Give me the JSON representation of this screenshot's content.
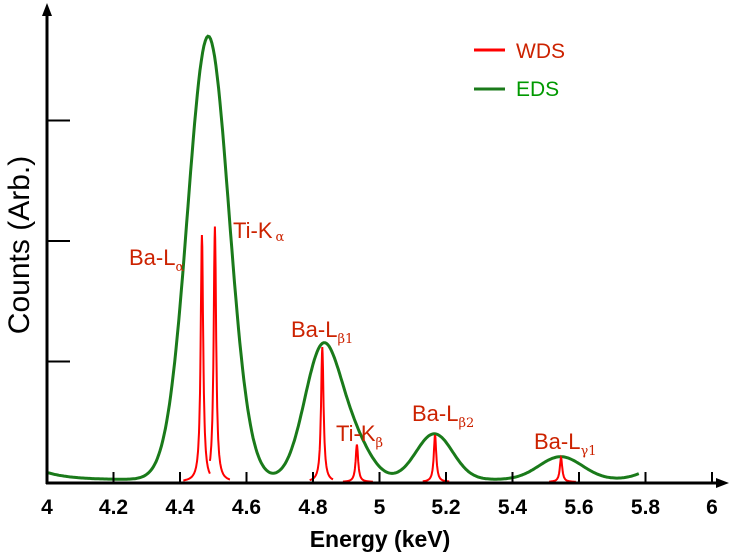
{
  "chart_data": {
    "type": "line",
    "title": "",
    "xlabel": "Energy (keV)",
    "ylabel": "Counts (Arb.)",
    "xlim": [
      4,
      6
    ],
    "ylim": [
      0,
      3.95
    ],
    "x_ticks": [
      "4",
      "4.2",
      "4.4",
      "4.6",
      "4.8",
      "5",
      "5.2",
      "5.4",
      "5.6",
      "5.8",
      "6"
    ],
    "y_ticks": [
      1,
      2,
      3
    ],
    "grid": false,
    "legend": {
      "placement": "top-right",
      "entries": [
        {
          "name": "WDS",
          "color": "#ff0000",
          "text_color": "#cc2200"
        },
        {
          "name": "EDS",
          "color": "#1a7a1a",
          "text_color": "#009900"
        }
      ]
    },
    "series": [
      {
        "name": "EDS",
        "color": "#1a7a1a",
        "x_range": [
          4.0,
          5.78
        ],
        "baseline": 0.02,
        "components": [
          {
            "center": 4.0,
            "amplitude": 0.06,
            "decay": 0.07,
            "kind": "exp"
          },
          {
            "center": 4.485,
            "amplitude": 3.68,
            "sigma": 0.062
          },
          {
            "center": 4.83,
            "amplitude": 1.1,
            "sigma": 0.055
          },
          {
            "center": 4.93,
            "amplitude": 0.25,
            "sigma": 0.05
          },
          {
            "center": 5.165,
            "amplitude": 0.38,
            "sigma": 0.055
          },
          {
            "center": 5.545,
            "amplitude": 0.19,
            "sigma": 0.065
          },
          {
            "center": 5.86,
            "amplitude": 0.12,
            "sigma": 0.06
          }
        ]
      },
      {
        "name": "WDS",
        "color": "#ff0000",
        "peaks": [
          {
            "label": "Ba-L",
            "sub": "α",
            "center": 4.466,
            "height": 2.05,
            "window": [
              4.41,
              4.49
            ]
          },
          {
            "label": "Ti-K",
            "sub": "α",
            "center": 4.505,
            "height": 2.12,
            "window": [
              4.49,
              4.55
            ]
          },
          {
            "label": "Ba-L",
            "sub": "β1",
            "center": 4.828,
            "height": 1.12,
            "window": [
              4.79,
              4.86
            ]
          },
          {
            "label": "Ti-K",
            "sub": "β",
            "center": 4.932,
            "height": 0.31,
            "window": [
              4.89,
              4.98
            ]
          },
          {
            "label": "Ba-L",
            "sub": "β2",
            "center": 5.167,
            "height": 0.39,
            "window": [
              5.13,
              5.21
            ]
          },
          {
            "label": "Ba-L",
            "sub": "γ1",
            "center": 5.546,
            "height": 0.2,
            "window": [
              5.51,
              5.59
            ]
          }
        ]
      }
    ]
  }
}
